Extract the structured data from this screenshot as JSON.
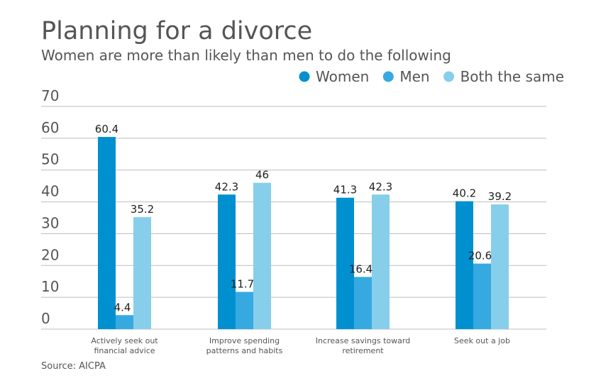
{
  "chart_data": {
    "type": "bar",
    "title": "Planning for a divorce",
    "subtitle": "Women are more than likely than men to do the following",
    "categories": [
      [
        "Actively seek out",
        "financial advice"
      ],
      [
        "Improve spending",
        "patterns and habits"
      ],
      [
        "Increase savings toward",
        "retirement"
      ],
      [
        "Seek out a job"
      ]
    ],
    "series": [
      {
        "name": "Women",
        "color": "#0090d0",
        "values": [
          60.4,
          42.3,
          41.3,
          40.2
        ]
      },
      {
        "name": "Men",
        "color": "#36a9e1",
        "values": [
          4.4,
          11.7,
          16.4,
          20.6
        ]
      },
      {
        "name": "Both the same",
        "color": "#87ceeb",
        "values": [
          35.2,
          46,
          42.3,
          39.2
        ]
      }
    ],
    "data_labels": [
      [
        "60.4",
        "42.3",
        "41.3",
        "40.2"
      ],
      [
        "4.4",
        "11.7",
        "16.4",
        "20.6"
      ],
      [
        "35.2",
        "46",
        "42.3",
        "39.2"
      ]
    ],
    "yticks": [
      "0",
      "10",
      "20",
      "30",
      "40",
      "50",
      "60",
      "70"
    ],
    "ylim": [
      0,
      70
    ],
    "grid": true,
    "legend_position": "top-right",
    "xlabel": "",
    "ylabel": "",
    "source": "Source: AICPA"
  }
}
